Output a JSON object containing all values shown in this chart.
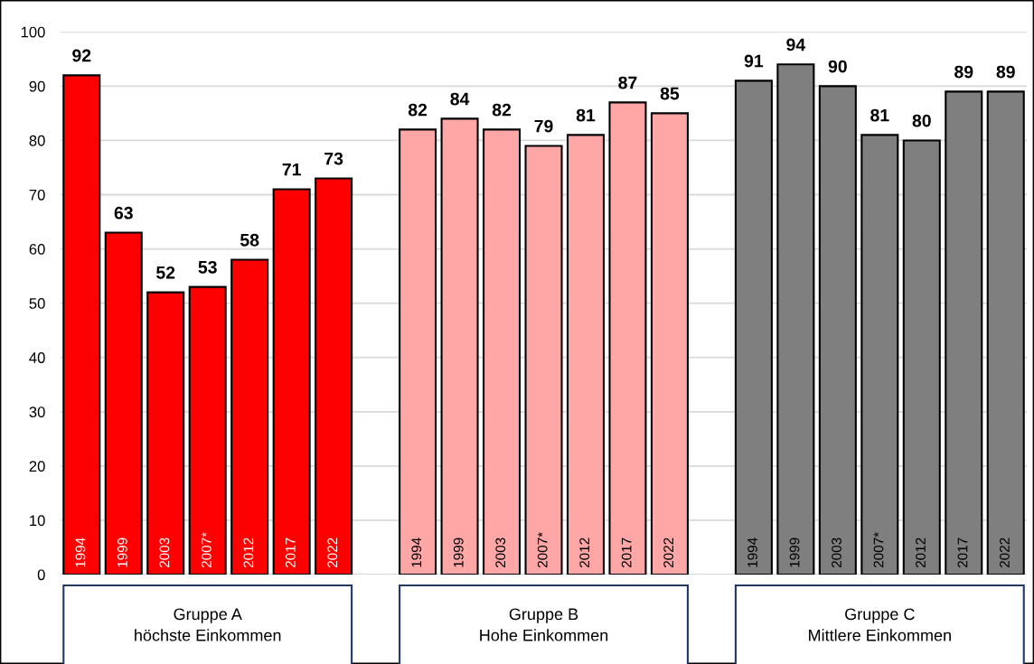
{
  "chart_data": {
    "type": "bar",
    "categories": [
      "1994",
      "1999",
      "2003",
      "2007*",
      "2012",
      "2017",
      "2022",
      null,
      "1994",
      "1999",
      "2003",
      "2007*",
      "2012",
      "2017",
      "2022",
      null,
      "1994",
      "1999",
      "2003",
      "2007*",
      "2012",
      "2017",
      "2022"
    ],
    "series": [
      {
        "name": "Gruppe A\nhöchste Einkommen",
        "color": "#ff0000",
        "values": [
          92,
          63,
          52,
          53,
          58,
          71,
          73,
          null,
          null,
          null,
          null,
          null,
          null,
          null,
          null,
          null,
          null,
          null,
          null,
          null,
          null,
          null,
          null
        ]
      },
      {
        "name": "Gruppe B\nHohe Einkommen",
        "color": "#ffa7a7",
        "values": [
          null,
          null,
          null,
          null,
          null,
          null,
          null,
          null,
          82,
          84,
          82,
          79,
          81,
          87,
          85,
          null,
          null,
          null,
          null,
          null,
          null,
          null,
          null
        ]
      },
      {
        "name": "Gruppe C\nMittlere Einkommen",
        "color": "#7f7f7f",
        "values": [
          null,
          null,
          null,
          null,
          null,
          null,
          null,
          null,
          null,
          null,
          null,
          null,
          null,
          null,
          null,
          null,
          91,
          94,
          90,
          81,
          80,
          89,
          89
        ]
      }
    ],
    "ylim": [
      0,
      100
    ],
    "yticks": [
      0,
      10,
      20,
      30,
      40,
      50,
      60,
      70,
      80,
      90,
      100
    ],
    "grid": "y",
    "data_labels": true,
    "legend": false
  }
}
